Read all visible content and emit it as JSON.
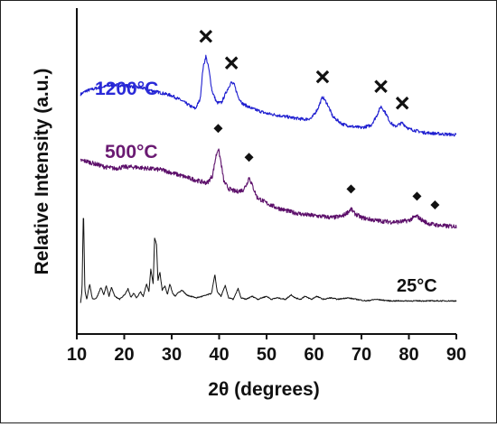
{
  "chart_data": {
    "type": "line",
    "xlabel": "2θ (degrees)",
    "ylabel": "Relative Intensity (a.u.)",
    "xlim": [
      10,
      90
    ],
    "x_ticks": [
      "10",
      "20",
      "30",
      "40",
      "50",
      "60",
      "70",
      "80",
      "90"
    ],
    "y_ticks_shown": false,
    "grid": false,
    "legend": "none (series labels printed inline)",
    "series": [
      {
        "name": "1200°C",
        "color": "#1f1fd0",
        "label_color": "#2a2ad8",
        "noise": 0.6,
        "peak_marker": "x-mark-icon",
        "points": [
          [
            10,
            62
          ],
          [
            12,
            67
          ],
          [
            15,
            70
          ],
          [
            18,
            72
          ],
          [
            21,
            71
          ],
          [
            24,
            69
          ],
          [
            27,
            66
          ],
          [
            30,
            63
          ],
          [
            32,
            59
          ],
          [
            34,
            54
          ],
          [
            35,
            52
          ],
          [
            36,
            60
          ],
          [
            36.6,
            86
          ],
          [
            37.2,
            96
          ],
          [
            37.8,
            86
          ],
          [
            38.5,
            67
          ],
          [
            39.5,
            57
          ],
          [
            40.5,
            57
          ],
          [
            41.5,
            66
          ],
          [
            42.5,
            74
          ],
          [
            43.2,
            72
          ],
          [
            44,
            62
          ],
          [
            45,
            56
          ],
          [
            47,
            52
          ],
          [
            50,
            48
          ],
          [
            53,
            46
          ],
          [
            56,
            44
          ],
          [
            58,
            43
          ],
          [
            59.5,
            44
          ],
          [
            60.8,
            52
          ],
          [
            61.8,
            62
          ],
          [
            62.8,
            56
          ],
          [
            64,
            45
          ],
          [
            66,
            39
          ],
          [
            68,
            37
          ],
          [
            70,
            36
          ],
          [
            72,
            38
          ],
          [
            73.2,
            46
          ],
          [
            74.1,
            54
          ],
          [
            75,
            49
          ],
          [
            76,
            41
          ],
          [
            77,
            37
          ],
          [
            78.6,
            40
          ],
          [
            80,
            35
          ],
          [
            83,
            32
          ],
          [
            86,
            31
          ],
          [
            90,
            30
          ]
        ],
        "marker_x": [
          37.2,
          42.6,
          61.8,
          74.1,
          78.6
        ]
      },
      {
        "name": "500°C",
        "color": "#5c0f6a",
        "label_color": "#6a1a72",
        "noise": 0.7,
        "peak_marker": "diamond-icon",
        "points": [
          [
            10,
            50
          ],
          [
            12,
            49
          ],
          [
            14,
            47
          ],
          [
            16,
            45
          ],
          [
            18,
            44
          ],
          [
            20,
            45
          ],
          [
            22,
            45
          ],
          [
            25,
            44
          ],
          [
            28,
            43
          ],
          [
            31,
            40
          ],
          [
            34,
            37
          ],
          [
            36,
            35
          ],
          [
            37.5,
            34
          ],
          [
            38.6,
            39
          ],
          [
            39.3,
            52
          ],
          [
            39.8,
            58
          ],
          [
            40.3,
            50
          ],
          [
            41,
            35
          ],
          [
            42,
            30
          ],
          [
            43.5,
            28
          ],
          [
            45,
            29
          ],
          [
            45.8,
            33
          ],
          [
            46.3,
            38
          ],
          [
            46.9,
            33
          ],
          [
            48,
            24
          ],
          [
            50,
            20
          ],
          [
            52,
            17
          ],
          [
            55,
            14
          ],
          [
            58,
            12
          ],
          [
            61,
            11
          ],
          [
            64,
            10
          ],
          [
            66,
            11
          ],
          [
            67.2,
            14
          ],
          [
            67.8,
            16
          ],
          [
            68.5,
            13
          ],
          [
            70,
            10
          ],
          [
            73,
            8
          ],
          [
            76,
            7
          ],
          [
            78,
            7
          ],
          [
            80,
            8
          ],
          [
            81,
            10
          ],
          [
            81.7,
            11
          ],
          [
            82.4,
            9
          ],
          [
            84,
            6
          ],
          [
            85.5,
            5
          ],
          [
            88,
            4
          ],
          [
            90,
            4
          ]
        ],
        "marker_x": [
          39.8,
          46.3,
          67.8,
          81.7,
          85.5
        ]
      },
      {
        "name": "25°C",
        "color": "#111111",
        "label_color": "#111111",
        "noise": 0.35,
        "points": [
          [
            10,
            0
          ],
          [
            10.8,
            0
          ],
          [
            11.1,
            8
          ],
          [
            11.4,
            62
          ],
          [
            11.7,
            8
          ],
          [
            12.1,
            2
          ],
          [
            12.7,
            12
          ],
          [
            13.3,
            2
          ],
          [
            14.2,
            3
          ],
          [
            15.1,
            10
          ],
          [
            15.7,
            5
          ],
          [
            16.2,
            11
          ],
          [
            16.8,
            4
          ],
          [
            17.3,
            10
          ],
          [
            18,
            4
          ],
          [
            19,
            2
          ],
          [
            20.1,
            5
          ],
          [
            20.8,
            9
          ],
          [
            21.4,
            3
          ],
          [
            22,
            6
          ],
          [
            22.6,
            3
          ],
          [
            23.4,
            7
          ],
          [
            24,
            4
          ],
          [
            24.7,
            12
          ],
          [
            25.2,
            7
          ],
          [
            25.6,
            22
          ],
          [
            26.1,
            12
          ],
          [
            26.4,
            42
          ],
          [
            26.8,
            38
          ],
          [
            27.1,
            14
          ],
          [
            27.5,
            20
          ],
          [
            28,
            8
          ],
          [
            28.6,
            11
          ],
          [
            29.1,
            5
          ],
          [
            29.6,
            12
          ],
          [
            30.2,
            6
          ],
          [
            30.7,
            4
          ],
          [
            31.2,
            6
          ],
          [
            32.2,
            8
          ],
          [
            33.1,
            5
          ],
          [
            34,
            4
          ],
          [
            35.2,
            3
          ],
          [
            36.5,
            4
          ],
          [
            37.6,
            5
          ],
          [
            38.4,
            6
          ],
          [
            39.1,
            18
          ],
          [
            39.6,
            7
          ],
          [
            40.4,
            4
          ],
          [
            41.3,
            11
          ],
          [
            42,
            3
          ],
          [
            43,
            2
          ],
          [
            44,
            9
          ],
          [
            44.6,
            3
          ],
          [
            45.6,
            2
          ],
          [
            47,
            4
          ],
          [
            48.2,
            2
          ],
          [
            49,
            3
          ],
          [
            50,
            4
          ],
          [
            51,
            2
          ],
          [
            52.2,
            3
          ],
          [
            54,
            2
          ],
          [
            55.2,
            5
          ],
          [
            56,
            3
          ],
          [
            57.2,
            2
          ],
          [
            58,
            4
          ],
          [
            59.5,
            2
          ],
          [
            60.5,
            4
          ],
          [
            62,
            2
          ],
          [
            63.5,
            3
          ],
          [
            65,
            2
          ],
          [
            67,
            3
          ],
          [
            69,
            2
          ],
          [
            71,
            1
          ],
          [
            73,
            2
          ],
          [
            76,
            1
          ],
          [
            80,
            1
          ],
          [
            84,
            1
          ],
          [
            86,
            1
          ],
          [
            88,
            1
          ],
          [
            90,
            1
          ]
        ],
        "marker_x": []
      }
    ]
  }
}
